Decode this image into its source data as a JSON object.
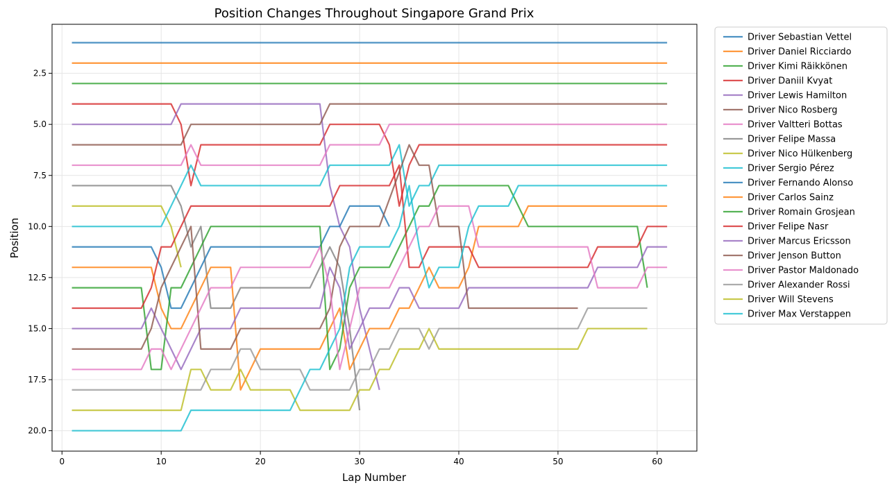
{
  "chart_data": {
    "type": "line",
    "title": "Position Changes Throughout Singapore Grand Prix",
    "xlabel": "Lap Number",
    "ylabel": "Position",
    "xlim": [
      -1,
      64
    ],
    "ylim": [
      21,
      0.1
    ],
    "y_inverted": true,
    "xticks": [
      0,
      10,
      20,
      30,
      40,
      50,
      60
    ],
    "yticks": [
      2.5,
      5.0,
      7.5,
      10.0,
      12.5,
      15.0,
      17.5,
      20.0
    ],
    "ytick_labels": [
      "2.5",
      "5.0",
      "7.5",
      "10.0",
      "12.5",
      "15.0",
      "17.5",
      "20.0"
    ],
    "grid": true,
    "legend_position": "outside-right",
    "series": [
      {
        "name": "Driver Sebastian Vettel",
        "color": "#1f77b4",
        "points": [
          [
            1,
            1
          ],
          [
            61,
            1
          ]
        ]
      },
      {
        "name": "Driver Daniel Ricciardo",
        "color": "#ff7f0e",
        "points": [
          [
            1,
            2
          ],
          [
            61,
            2
          ]
        ]
      },
      {
        "name": "Driver Kimi Räikkönen",
        "color": "#2ca02c",
        "points": [
          [
            1,
            3
          ],
          [
            61,
            3
          ]
        ]
      },
      {
        "name": "Driver Daniil Kvyat",
        "color": "#d62728",
        "points": [
          [
            1,
            4
          ],
          [
            11,
            4
          ],
          [
            12,
            5
          ],
          [
            13,
            8
          ],
          [
            14,
            6
          ],
          [
            26,
            6
          ],
          [
            27,
            5
          ],
          [
            32,
            5
          ],
          [
            33,
            6
          ],
          [
            34,
            9
          ],
          [
            35,
            7
          ],
          [
            36,
            6
          ],
          [
            61,
            6
          ]
        ]
      },
      {
        "name": "Driver Lewis Hamilton",
        "color": "#9467bd",
        "points": [
          [
            1,
            5
          ],
          [
            11,
            5
          ],
          [
            12,
            4
          ],
          [
            26,
            4
          ],
          [
            27,
            8
          ],
          [
            28,
            10
          ],
          [
            29,
            11
          ],
          [
            30,
            14
          ],
          [
            31,
            16
          ],
          [
            32,
            18
          ]
        ]
      },
      {
        "name": "Driver Nico Rosberg",
        "color": "#8c564b",
        "points": [
          [
            1,
            6
          ],
          [
            12,
            6
          ],
          [
            13,
            5
          ],
          [
            26,
            5
          ],
          [
            27,
            4
          ],
          [
            61,
            4
          ]
        ]
      },
      {
        "name": "Driver Valtteri Bottas",
        "color": "#e377c2",
        "points": [
          [
            1,
            7
          ],
          [
            12,
            7
          ],
          [
            13,
            6
          ],
          [
            14,
            7
          ],
          [
            26,
            7
          ],
          [
            27,
            6
          ],
          [
            32,
            6
          ],
          [
            33,
            5
          ],
          [
            61,
            5
          ]
        ]
      },
      {
        "name": "Driver Felipe Massa",
        "color": "#7f7f7f",
        "points": [
          [
            1,
            8
          ],
          [
            11,
            8
          ],
          [
            12,
            9
          ],
          [
            13,
            11
          ],
          [
            14,
            10
          ],
          [
            15,
            14
          ],
          [
            17,
            14
          ],
          [
            18,
            13
          ],
          [
            25,
            13
          ],
          [
            27,
            11
          ],
          [
            28,
            12
          ],
          [
            29,
            15
          ],
          [
            30,
            19
          ]
        ]
      },
      {
        "name": "Driver Nico Hülkenberg",
        "color": "#bcbd22",
        "points": [
          [
            1,
            9
          ],
          [
            10,
            9
          ],
          [
            11,
            10
          ],
          [
            12,
            12
          ]
        ]
      },
      {
        "name": "Driver Sergio Pérez",
        "color": "#17becf",
        "points": [
          [
            1,
            10
          ],
          [
            10,
            10
          ],
          [
            13,
            7
          ],
          [
            14,
            8
          ],
          [
            26,
            8
          ],
          [
            27,
            7
          ],
          [
            33,
            7
          ],
          [
            34,
            6
          ],
          [
            35,
            9
          ],
          [
            36,
            8
          ],
          [
            37,
            8
          ],
          [
            38,
            7
          ],
          [
            61,
            7
          ]
        ]
      },
      {
        "name": "Driver Fernando Alonso",
        "color": "#1f77b4",
        "points": [
          [
            1,
            11
          ],
          [
            9,
            11
          ],
          [
            10,
            12
          ],
          [
            11,
            14
          ],
          [
            12,
            14
          ],
          [
            15,
            11
          ],
          [
            26,
            11
          ],
          [
            27,
            10
          ],
          [
            28,
            10
          ],
          [
            29,
            9
          ],
          [
            32,
            9
          ],
          [
            33,
            10
          ]
        ]
      },
      {
        "name": "Driver Carlos Sainz",
        "color": "#ff7f0e",
        "points": [
          [
            1,
            12
          ],
          [
            9,
            12
          ],
          [
            10,
            14
          ],
          [
            11,
            15
          ],
          [
            12,
            15
          ],
          [
            15,
            12
          ],
          [
            17,
            12
          ],
          [
            18,
            18
          ],
          [
            20,
            16
          ],
          [
            26,
            16
          ],
          [
            28,
            14
          ],
          [
            29,
            17
          ],
          [
            30,
            16
          ],
          [
            31,
            15
          ],
          [
            33,
            15
          ],
          [
            34,
            14
          ],
          [
            35,
            14
          ],
          [
            37,
            12
          ],
          [
            38,
            13
          ],
          [
            40,
            13
          ],
          [
            41,
            12
          ],
          [
            42,
            10
          ],
          [
            46,
            10
          ],
          [
            47,
            9
          ],
          [
            61,
            9
          ]
        ]
      },
      {
        "name": "Driver Romain Grosjean",
        "color": "#2ca02c",
        "points": [
          [
            1,
            13
          ],
          [
            8,
            13
          ],
          [
            9,
            17
          ],
          [
            10,
            17
          ],
          [
            11,
            13
          ],
          [
            12,
            13
          ],
          [
            15,
            10
          ],
          [
            26,
            10
          ],
          [
            27,
            17
          ],
          [
            28,
            16
          ],
          [
            29,
            13
          ],
          [
            30,
            12
          ],
          [
            33,
            12
          ],
          [
            36,
            9
          ],
          [
            37,
            9
          ],
          [
            38,
            8
          ],
          [
            45,
            8
          ],
          [
            47,
            10
          ],
          [
            58,
            10
          ],
          [
            59,
            13
          ]
        ]
      },
      {
        "name": "Driver Felipe Nasr",
        "color": "#d62728",
        "points": [
          [
            1,
            14
          ],
          [
            8,
            14
          ],
          [
            9,
            13
          ],
          [
            10,
            11
          ],
          [
            11,
            11
          ],
          [
            13,
            9
          ],
          [
            27,
            9
          ],
          [
            28,
            8
          ],
          [
            33,
            8
          ],
          [
            34,
            7
          ],
          [
            35,
            12
          ],
          [
            36,
            12
          ],
          [
            37,
            11
          ],
          [
            41,
            11
          ],
          [
            42,
            12
          ],
          [
            53,
            12
          ],
          [
            54,
            11
          ],
          [
            58,
            11
          ],
          [
            59,
            10
          ],
          [
            61,
            10
          ]
        ]
      },
      {
        "name": "Driver Marcus Ericsson",
        "color": "#9467bd",
        "points": [
          [
            1,
            15
          ],
          [
            8,
            15
          ],
          [
            9,
            14
          ],
          [
            12,
            17
          ],
          [
            14,
            15
          ],
          [
            17,
            15
          ],
          [
            18,
            14
          ],
          [
            26,
            14
          ],
          [
            27,
            12
          ],
          [
            28,
            13
          ],
          [
            29,
            16
          ],
          [
            31,
            14
          ],
          [
            33,
            14
          ],
          [
            34,
            13
          ],
          [
            35,
            13
          ],
          [
            36,
            14
          ],
          [
            40,
            14
          ],
          [
            41,
            13
          ],
          [
            53,
            13
          ],
          [
            54,
            12
          ],
          [
            58,
            12
          ],
          [
            59,
            11
          ],
          [
            61,
            11
          ]
        ]
      },
      {
        "name": "Driver Jenson Button",
        "color": "#8c564b",
        "points": [
          [
            1,
            16
          ],
          [
            8,
            16
          ],
          [
            9,
            15
          ],
          [
            10,
            13
          ],
          [
            13,
            10
          ],
          [
            14,
            16
          ],
          [
            17,
            16
          ],
          [
            18,
            15
          ],
          [
            26,
            15
          ],
          [
            27,
            14
          ],
          [
            28,
            11
          ],
          [
            29,
            10
          ],
          [
            32,
            10
          ],
          [
            35,
            6
          ],
          [
            36,
            7
          ],
          [
            37,
            7
          ],
          [
            38,
            10
          ],
          [
            40,
            10
          ],
          [
            41,
            14
          ],
          [
            52,
            14
          ]
        ]
      },
      {
        "name": "Driver Pastor Maldonado",
        "color": "#e377c2",
        "points": [
          [
            1,
            17
          ],
          [
            8,
            17
          ],
          [
            9,
            16
          ],
          [
            10,
            16
          ],
          [
            11,
            17
          ],
          [
            15,
            13
          ],
          [
            17,
            13
          ],
          [
            18,
            12
          ],
          [
            25,
            12
          ],
          [
            26,
            11
          ],
          [
            27,
            13
          ],
          [
            28,
            17
          ],
          [
            29,
            15
          ],
          [
            30,
            13
          ],
          [
            33,
            13
          ],
          [
            36,
            10
          ],
          [
            37,
            10
          ],
          [
            38,
            9
          ],
          [
            41,
            9
          ],
          [
            42,
            11
          ],
          [
            53,
            11
          ],
          [
            54,
            13
          ],
          [
            58,
            13
          ],
          [
            59,
            12
          ],
          [
            61,
            12
          ]
        ]
      },
      {
        "name": "Driver Alexander Rossi",
        "color": "#979797",
        "points": [
          [
            1,
            18
          ],
          [
            14,
            18
          ],
          [
            15,
            17
          ],
          [
            17,
            17
          ],
          [
            18,
            16
          ],
          [
            19,
            16
          ],
          [
            20,
            17
          ],
          [
            24,
            17
          ],
          [
            25,
            18
          ],
          [
            29,
            18
          ],
          [
            30,
            17
          ],
          [
            31,
            17
          ],
          [
            32,
            16
          ],
          [
            33,
            16
          ],
          [
            34,
            15
          ],
          [
            36,
            15
          ],
          [
            37,
            16
          ],
          [
            38,
            15
          ],
          [
            52,
            15
          ],
          [
            53,
            14
          ],
          [
            59,
            14
          ]
        ]
      },
      {
        "name": "Driver Will Stevens",
        "color": "#bcbd22",
        "points": [
          [
            1,
            19
          ],
          [
            12,
            19
          ],
          [
            13,
            17
          ],
          [
            14,
            17
          ],
          [
            15,
            18
          ],
          [
            17,
            18
          ],
          [
            18,
            17
          ],
          [
            19,
            18
          ],
          [
            23,
            18
          ],
          [
            24,
            19
          ],
          [
            29,
            19
          ],
          [
            30,
            18
          ],
          [
            31,
            18
          ],
          [
            32,
            17
          ],
          [
            33,
            17
          ],
          [
            34,
            16
          ],
          [
            36,
            16
          ],
          [
            37,
            15
          ],
          [
            38,
            16
          ],
          [
            52,
            16
          ],
          [
            53,
            15
          ],
          [
            59,
            15
          ]
        ]
      },
      {
        "name": "Driver Max Verstappen",
        "color": "#17becf",
        "points": [
          [
            1,
            20
          ],
          [
            12,
            20
          ],
          [
            13,
            19
          ],
          [
            23,
            19
          ],
          [
            25,
            17
          ],
          [
            26,
            17
          ],
          [
            27,
            16
          ],
          [
            28,
            15
          ],
          [
            29,
            12
          ],
          [
            30,
            11
          ],
          [
            33,
            11
          ],
          [
            34,
            10
          ],
          [
            35,
            8
          ],
          [
            36,
            11
          ],
          [
            37,
            13
          ],
          [
            38,
            12
          ],
          [
            40,
            12
          ],
          [
            41,
            10
          ],
          [
            42,
            9
          ],
          [
            45,
            9
          ],
          [
            46,
            8
          ],
          [
            61,
            8
          ]
        ]
      }
    ]
  }
}
